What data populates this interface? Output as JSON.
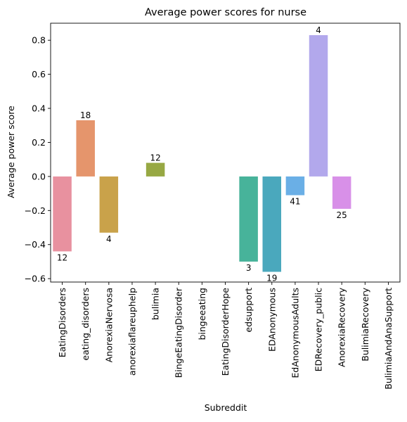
{
  "chart_data": {
    "type": "bar",
    "title": "Average power scores for nurse",
    "xlabel": "Subreddit",
    "ylabel": "Average power score",
    "ylim": [
      -0.62,
      0.9
    ],
    "yticks": [
      -0.6,
      -0.4,
      -0.2,
      0.0,
      0.2,
      0.4,
      0.6,
      0.8
    ],
    "grid": false,
    "categories": [
      "EatingDisorders",
      "eating_disorders",
      "AnorexiaNervosa",
      "anorexiaflareuphelp",
      "bulimia",
      "BingeEatingDisorder",
      "bingeeating",
      "EatingDisorderHope",
      "edsupport",
      "EDAnonymous",
      "EdAnonymousAdults",
      "EDRecovery_public",
      "AnorexiaRecovery",
      "BulimiaRecovery",
      "BulimiaAndAnaSupport"
    ],
    "values": [
      -0.44,
      0.33,
      -0.33,
      null,
      0.08,
      null,
      null,
      null,
      -0.5,
      -0.56,
      -0.11,
      0.83,
      -0.19,
      null,
      null
    ],
    "counts": [
      "12",
      "18",
      "4",
      null,
      "12",
      null,
      null,
      null,
      "3",
      "19",
      "41",
      "4",
      "25",
      null,
      null
    ],
    "colors": [
      "#e8919f",
      "#e5956c",
      "#c9a24a",
      null,
      "#97a843",
      null,
      null,
      null,
      "#47b39a",
      "#4aa8bd",
      "#6aafe6",
      "#b2a8ec",
      "#d890e8",
      null,
      null
    ]
  }
}
